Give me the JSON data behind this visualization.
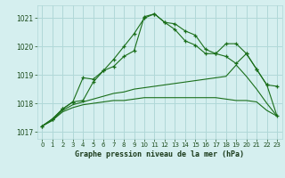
{
  "background_color": "#d5efef",
  "grid_color": "#b0d8d8",
  "line_color": "#1a6e1a",
  "title": "Graphe pression niveau de la mer (hPa)",
  "xlim": [
    -0.5,
    23.5
  ],
  "ylim": [
    1016.75,
    1021.45
  ],
  "yticks": [
    1017,
    1018,
    1019,
    1020,
    1021
  ],
  "xticks": [
    0,
    1,
    2,
    3,
    4,
    5,
    6,
    7,
    8,
    9,
    10,
    11,
    12,
    13,
    14,
    15,
    16,
    17,
    18,
    19,
    20,
    21,
    22,
    23
  ],
  "series1_x": [
    0,
    1,
    2,
    3,
    4,
    5,
    6,
    7,
    8,
    9,
    10,
    11,
    12,
    13,
    14,
    15,
    16,
    17,
    18,
    19,
    20,
    21,
    22,
    23
  ],
  "series1_y": [
    1017.2,
    1017.4,
    1017.7,
    1017.85,
    1017.95,
    1018.0,
    1018.05,
    1018.1,
    1018.1,
    1018.15,
    1018.2,
    1018.2,
    1018.2,
    1018.2,
    1018.2,
    1018.2,
    1018.2,
    1018.2,
    1018.15,
    1018.1,
    1018.1,
    1018.05,
    1017.75,
    1017.55
  ],
  "series2_x": [
    0,
    1,
    2,
    3,
    4,
    5,
    6,
    7,
    8,
    9,
    10,
    11,
    12,
    13,
    14,
    15,
    16,
    17,
    18,
    19,
    20,
    21,
    22,
    23
  ],
  "series2_y": [
    1017.2,
    1017.4,
    1017.75,
    1017.95,
    1018.05,
    1018.15,
    1018.25,
    1018.35,
    1018.4,
    1018.5,
    1018.55,
    1018.6,
    1018.65,
    1018.7,
    1018.75,
    1018.8,
    1018.85,
    1018.9,
    1018.95,
    1019.35,
    1018.95,
    1018.5,
    1018.0,
    1017.55
  ],
  "series3_x": [
    0,
    1,
    2,
    3,
    4,
    5,
    6,
    7,
    8,
    9,
    10,
    11,
    12,
    13,
    14,
    15,
    16,
    17,
    18,
    19,
    20,
    21,
    22,
    23
  ],
  "series3_y": [
    1017.2,
    1017.45,
    1017.8,
    1018.05,
    1018.1,
    1018.75,
    1019.15,
    1019.3,
    1019.65,
    1019.85,
    1021.05,
    1021.15,
    1020.85,
    1020.6,
    1020.2,
    1020.05,
    1019.75,
    1019.75,
    1020.1,
    1020.1,
    1019.75,
    1019.2,
    1018.65,
    1018.6
  ],
  "series4_x": [
    0,
    1,
    2,
    3,
    4,
    5,
    6,
    7,
    8,
    9,
    10,
    11,
    12,
    13,
    14,
    15,
    16,
    17,
    18,
    19,
    20,
    21,
    22,
    23
  ],
  "series4_y": [
    1017.2,
    1017.45,
    1017.8,
    1018.05,
    1018.9,
    1018.85,
    1019.15,
    1019.55,
    1020.0,
    1020.45,
    1021.0,
    1021.15,
    1020.85,
    1020.8,
    1020.55,
    1020.4,
    1019.9,
    1019.75,
    1019.65,
    1019.4,
    1019.75,
    1019.2,
    1018.65,
    1017.55
  ]
}
